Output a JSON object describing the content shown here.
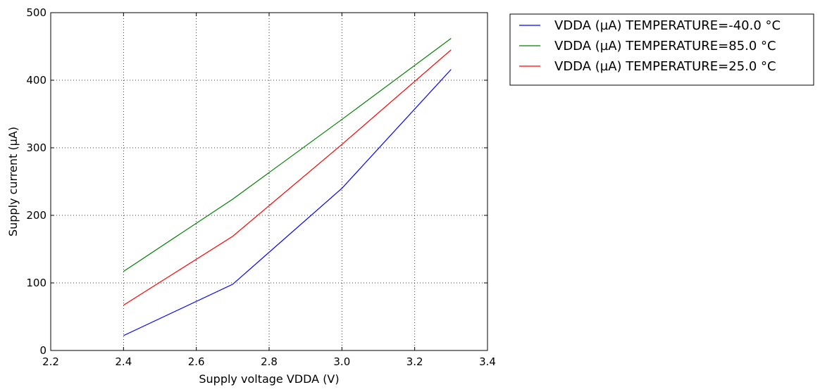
{
  "chart_data": {
    "type": "line",
    "xlabel": "Supply voltage VDDA (V)",
    "ylabel": "Supply current (µA)",
    "xlim": [
      2.2,
      3.4
    ],
    "ylim": [
      0,
      500
    ],
    "xticks": [
      "2.2",
      "2.4",
      "2.6",
      "2.8",
      "3.0",
      "3.2",
      "3.4"
    ],
    "yticks": [
      "0",
      "100",
      "200",
      "300",
      "400",
      "500"
    ],
    "grid": true,
    "legend_position": "outside-top-right",
    "x": [
      2.4,
      2.7,
      3.0,
      3.3
    ],
    "series": [
      {
        "name": "VDDA (µA) TEMPERATURE=-40.0 °C",
        "color": "#0000ff",
        "values": [
          22,
          98,
          240,
          416
        ]
      },
      {
        "name": "VDDA (µA) TEMPERATURE=85.0 °C",
        "color": "#008000",
        "values": [
          117,
          224,
          342,
          462
        ]
      },
      {
        "name": "VDDA (µA) TEMPERATURE=25.0 °C",
        "color": "#ff0000",
        "values": [
          67,
          169,
          305,
          445
        ]
      }
    ]
  }
}
